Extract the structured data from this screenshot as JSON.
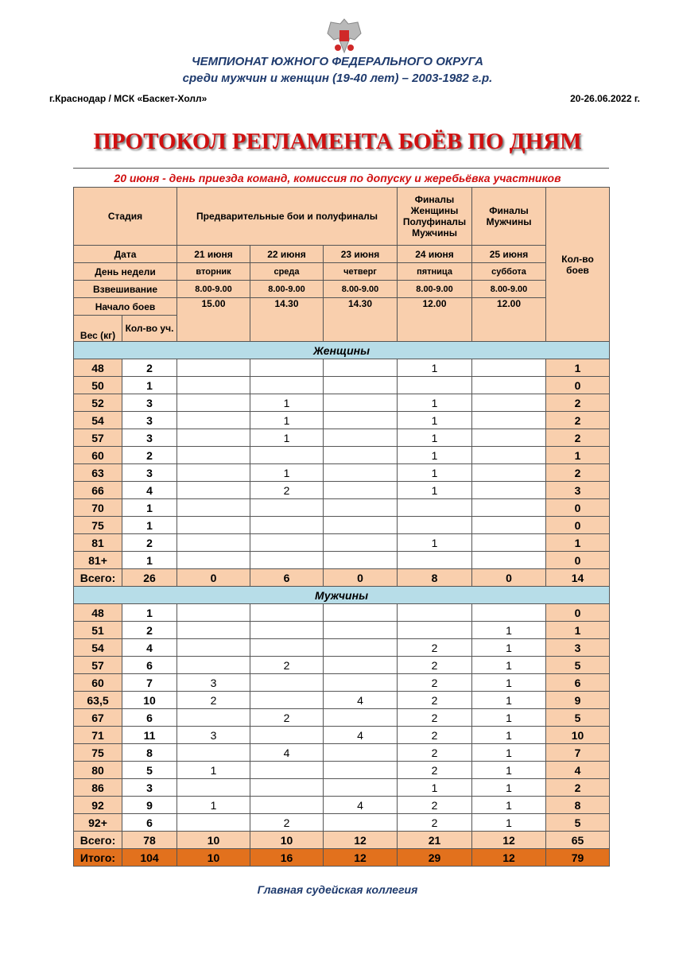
{
  "header": {
    "line1": "ЧЕМПИОНАТ ЮЖНОГО ФЕДЕРАЛЬНОГО ОКРУГА",
    "line2": "среди мужчин и женщин  (19-40 лет) – 2003-1982 г.р.",
    "place": "г.Краснодар / МСК «Баскет-Холл»",
    "dates": "20-26.06.2022 г.",
    "title": "ПРОТОКОЛ РЕГЛАМЕНТА БОЁВ ПО ДНЯМ",
    "subtitle": "20 июня - день приезда команд, комиссия по допуску и жеребьёвка участников"
  },
  "table": {
    "stage_label": "Стадия",
    "stage_prelim": "Предварительные бои и полуфиналы",
    "stage_24": "Финалы Женщины Полуфиналы Мужчины",
    "stage_25": "Финалы Мужчины",
    "bouts_label": "Кол-во боев",
    "date_label": "Дата",
    "weekday_label": "День недели",
    "weighing_label": "Взвешивание",
    "start_label": "Начало боев",
    "weight_label": "Вес (кг)",
    "count_label": "Кол-во уч.",
    "days": [
      {
        "date": "21 июня",
        "weekday": "вторник",
        "weighing": "8.00-9.00",
        "start": "15.00"
      },
      {
        "date": "22 июня",
        "weekday": "среда",
        "weighing": "8.00-9.00",
        "start": "14.30"
      },
      {
        "date": "23 июня",
        "weekday": "четверг",
        "weighing": "8.00-9.00",
        "start": "14.30"
      },
      {
        "date": "24 июня",
        "weekday": "пятница",
        "weighing": "8.00-9.00",
        "start": "12.00"
      },
      {
        "date": "25 июня",
        "weekday": "суббота",
        "weighing": "8.00-9.00",
        "start": "12.00"
      }
    ],
    "sections": [
      {
        "name": "Женщины",
        "rows": [
          [
            "48",
            "2",
            "",
            "",
            "",
            "1",
            "",
            "1"
          ],
          [
            "50",
            "1",
            "",
            "",
            "",
            "",
            "",
            "0"
          ],
          [
            "52",
            "3",
            "",
            "1",
            "",
            "1",
            "",
            "2"
          ],
          [
            "54",
            "3",
            "",
            "1",
            "",
            "1",
            "",
            "2"
          ],
          [
            "57",
            "3",
            "",
            "1",
            "",
            "1",
            "",
            "2"
          ],
          [
            "60",
            "2",
            "",
            "",
            "",
            "1",
            "",
            "1"
          ],
          [
            "63",
            "3",
            "",
            "1",
            "",
            "1",
            "",
            "2"
          ],
          [
            "66",
            "4",
            "",
            "2",
            "",
            "1",
            "",
            "3"
          ],
          [
            "70",
            "1",
            "",
            "",
            "",
            "",
            "",
            "0"
          ],
          [
            "75",
            "1",
            "",
            "",
            "",
            "",
            "",
            "0"
          ],
          [
            "81",
            "2",
            "",
            "",
            "",
            "1",
            "",
            "1"
          ],
          [
            "81+",
            "1",
            "",
            "",
            "",
            "",
            "",
            "0"
          ]
        ],
        "total": [
          "Всего:",
          "26",
          "0",
          "6",
          "0",
          "8",
          "0",
          "14"
        ]
      },
      {
        "name": "Мужчины",
        "rows": [
          [
            "48",
            "1",
            "",
            "",
            "",
            "",
            "",
            "0"
          ],
          [
            "51",
            "2",
            "",
            "",
            "",
            "",
            "1",
            "1"
          ],
          [
            "54",
            "4",
            "",
            "",
            "",
            "2",
            "1",
            "3"
          ],
          [
            "57",
            "6",
            "",
            "2",
            "",
            "2",
            "1",
            "5"
          ],
          [
            "60",
            "7",
            "3",
            "",
            "",
            "2",
            "1",
            "6"
          ],
          [
            "63,5",
            "10",
            "2",
            "",
            "4",
            "2",
            "1",
            "9"
          ],
          [
            "67",
            "6",
            "",
            "2",
            "",
            "2",
            "1",
            "5"
          ],
          [
            "71",
            "11",
            "3",
            "",
            "4",
            "2",
            "1",
            "10"
          ],
          [
            "75",
            "8",
            "",
            "4",
            "",
            "2",
            "1",
            "7"
          ],
          [
            "80",
            "5",
            "1",
            "",
            "",
            "2",
            "1",
            "4"
          ],
          [
            "86",
            "3",
            "",
            "",
            "",
            "1",
            "1",
            "2"
          ],
          [
            "92",
            "9",
            "1",
            "",
            "4",
            "2",
            "1",
            "8"
          ],
          [
            "92+",
            "6",
            "",
            "2",
            "",
            "2",
            "1",
            "5"
          ]
        ],
        "total": [
          "Всего:",
          "78",
          "10",
          "10",
          "12",
          "21",
          "12",
          "65"
        ]
      }
    ],
    "grand_total": [
      "Итого:",
      "104",
      "10",
      "16",
      "12",
      "29",
      "12",
      "79"
    ]
  },
  "footer": "Главная судейская коллегия",
  "colors": {
    "header_bg": "#f9cfad",
    "section_bg": "#b7dde8",
    "grand_bg": "#e2711d",
    "title": "#d01010",
    "blue_text": "#1f3b6e"
  }
}
